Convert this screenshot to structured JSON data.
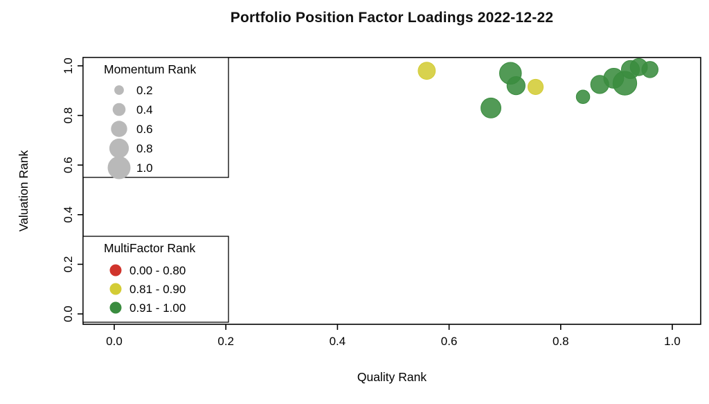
{
  "page": {
    "background": "#ffffff"
  },
  "chart_data": {
    "type": "scatter",
    "title": "Portfolio Position Factor Loadings 2022-12-22",
    "xlabel": "Quality Rank",
    "ylabel": "Valuation Rank",
    "xlim": [
      0.0,
      1.0
    ],
    "ylim": [
      0.0,
      1.0
    ],
    "x_ticks": [
      0.0,
      0.2,
      0.4,
      0.6,
      0.8,
      1.0
    ],
    "y_ticks": [
      0.0,
      0.2,
      0.4,
      0.6,
      0.8,
      1.0
    ],
    "grid": false,
    "legend_size": {
      "title": "Momentum Rank",
      "position": "top-left",
      "swatch_color": "#b9b9b9",
      "values": [
        0.2,
        0.4,
        0.6,
        0.8,
        1.0
      ]
    },
    "legend_color": {
      "title": "MultiFactor Rank",
      "position": "bottom-left",
      "entries": [
        {
          "label": "0.00 - 0.80",
          "color": "#d0342c"
        },
        {
          "label": "0.81 - 0.90",
          "color": "#d3cc35"
        },
        {
          "label": "0.91 - 1.00",
          "color": "#3a8c3f"
        }
      ]
    },
    "encoding_note": "bubble size = Momentum Rank, bubble color = MultiFactor Rank bucket",
    "points": [
      {
        "quality": 0.56,
        "valuation": 0.98,
        "momentum": 0.55,
        "bucket": "0.81 - 0.90"
      },
      {
        "quality": 0.71,
        "valuation": 0.97,
        "momentum": 0.8,
        "bucket": "0.91 - 1.00"
      },
      {
        "quality": 0.72,
        "valuation": 0.92,
        "momentum": 0.6,
        "bucket": "0.91 - 1.00"
      },
      {
        "quality": 0.755,
        "valuation": 0.915,
        "momentum": 0.45,
        "bucket": "0.81 - 0.90"
      },
      {
        "quality": 0.675,
        "valuation": 0.83,
        "momentum": 0.7,
        "bucket": "0.91 - 1.00"
      },
      {
        "quality": 0.84,
        "valuation": 0.875,
        "momentum": 0.35,
        "bucket": "0.91 - 1.00"
      },
      {
        "quality": 0.87,
        "valuation": 0.925,
        "momentum": 0.6,
        "bucket": "0.91 - 1.00"
      },
      {
        "quality": 0.895,
        "valuation": 0.95,
        "momentum": 0.7,
        "bucket": "0.91 - 1.00"
      },
      {
        "quality": 0.915,
        "valuation": 0.93,
        "momentum": 0.9,
        "bucket": "0.91 - 1.00"
      },
      {
        "quality": 0.925,
        "valuation": 0.985,
        "momentum": 0.6,
        "bucket": "0.91 - 1.00"
      },
      {
        "quality": 0.94,
        "valuation": 0.995,
        "momentum": 0.55,
        "bucket": "0.91 - 1.00"
      },
      {
        "quality": 0.96,
        "valuation": 0.985,
        "momentum": 0.5,
        "bucket": "0.91 - 1.00"
      }
    ]
  }
}
